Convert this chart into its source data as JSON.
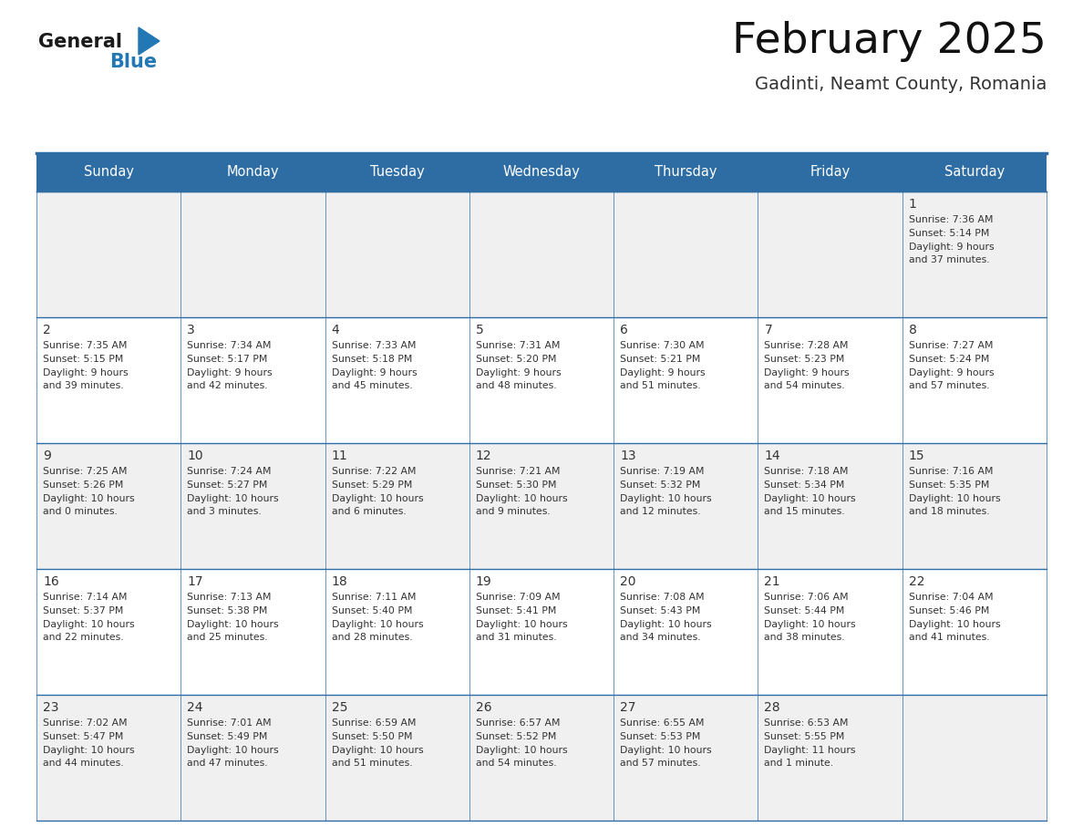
{
  "title": "February 2025",
  "subtitle": "Gadinti, Neamt County, Romania",
  "header_bg": "#2E6DA4",
  "header_text_color": "#FFFFFF",
  "cell_bg_light": "#F0F0F0",
  "cell_bg_white": "#FFFFFF",
  "border_color": "#2E6DA4",
  "day_names": [
    "Sunday",
    "Monday",
    "Tuesday",
    "Wednesday",
    "Thursday",
    "Friday",
    "Saturday"
  ],
  "text_color": "#333333",
  "day_num_color": "#333333",
  "logo_general_color": "#1a1a1a",
  "logo_blue_color": "#2278B4",
  "calendar": [
    [
      null,
      null,
      null,
      null,
      null,
      null,
      1
    ],
    [
      2,
      3,
      4,
      5,
      6,
      7,
      8
    ],
    [
      9,
      10,
      11,
      12,
      13,
      14,
      15
    ],
    [
      16,
      17,
      18,
      19,
      20,
      21,
      22
    ],
    [
      23,
      24,
      25,
      26,
      27,
      28,
      null
    ]
  ],
  "sun_data": {
    "1": {
      "rise": "7:36 AM",
      "set": "5:14 PM",
      "day_hours": 9,
      "day_mins": 37
    },
    "2": {
      "rise": "7:35 AM",
      "set": "5:15 PM",
      "day_hours": 9,
      "day_mins": 39
    },
    "3": {
      "rise": "7:34 AM",
      "set": "5:17 PM",
      "day_hours": 9,
      "day_mins": 42
    },
    "4": {
      "rise": "7:33 AM",
      "set": "5:18 PM",
      "day_hours": 9,
      "day_mins": 45
    },
    "5": {
      "rise": "7:31 AM",
      "set": "5:20 PM",
      "day_hours": 9,
      "day_mins": 48
    },
    "6": {
      "rise": "7:30 AM",
      "set": "5:21 PM",
      "day_hours": 9,
      "day_mins": 51
    },
    "7": {
      "rise": "7:28 AM",
      "set": "5:23 PM",
      "day_hours": 9,
      "day_mins": 54
    },
    "8": {
      "rise": "7:27 AM",
      "set": "5:24 PM",
      "day_hours": 9,
      "day_mins": 57
    },
    "9": {
      "rise": "7:25 AM",
      "set": "5:26 PM",
      "day_hours": 10,
      "day_mins": 0
    },
    "10": {
      "rise": "7:24 AM",
      "set": "5:27 PM",
      "day_hours": 10,
      "day_mins": 3
    },
    "11": {
      "rise": "7:22 AM",
      "set": "5:29 PM",
      "day_hours": 10,
      "day_mins": 6
    },
    "12": {
      "rise": "7:21 AM",
      "set": "5:30 PM",
      "day_hours": 10,
      "day_mins": 9
    },
    "13": {
      "rise": "7:19 AM",
      "set": "5:32 PM",
      "day_hours": 10,
      "day_mins": 12
    },
    "14": {
      "rise": "7:18 AM",
      "set": "5:34 PM",
      "day_hours": 10,
      "day_mins": 15
    },
    "15": {
      "rise": "7:16 AM",
      "set": "5:35 PM",
      "day_hours": 10,
      "day_mins": 18
    },
    "16": {
      "rise": "7:14 AM",
      "set": "5:37 PM",
      "day_hours": 10,
      "day_mins": 22
    },
    "17": {
      "rise": "7:13 AM",
      "set": "5:38 PM",
      "day_hours": 10,
      "day_mins": 25
    },
    "18": {
      "rise": "7:11 AM",
      "set": "5:40 PM",
      "day_hours": 10,
      "day_mins": 28
    },
    "19": {
      "rise": "7:09 AM",
      "set": "5:41 PM",
      "day_hours": 10,
      "day_mins": 31
    },
    "20": {
      "rise": "7:08 AM",
      "set": "5:43 PM",
      "day_hours": 10,
      "day_mins": 34
    },
    "21": {
      "rise": "7:06 AM",
      "set": "5:44 PM",
      "day_hours": 10,
      "day_mins": 38
    },
    "22": {
      "rise": "7:04 AM",
      "set": "5:46 PM",
      "day_hours": 10,
      "day_mins": 41
    },
    "23": {
      "rise": "7:02 AM",
      "set": "5:47 PM",
      "day_hours": 10,
      "day_mins": 44
    },
    "24": {
      "rise": "7:01 AM",
      "set": "5:49 PM",
      "day_hours": 10,
      "day_mins": 47
    },
    "25": {
      "rise": "6:59 AM",
      "set": "5:50 PM",
      "day_hours": 10,
      "day_mins": 51
    },
    "26": {
      "rise": "6:57 AM",
      "set": "5:52 PM",
      "day_hours": 10,
      "day_mins": 54
    },
    "27": {
      "rise": "6:55 AM",
      "set": "5:53 PM",
      "day_hours": 10,
      "day_mins": 57
    },
    "28": {
      "rise": "6:53 AM",
      "set": "5:55 PM",
      "day_hours": 11,
      "day_mins": 1
    }
  }
}
